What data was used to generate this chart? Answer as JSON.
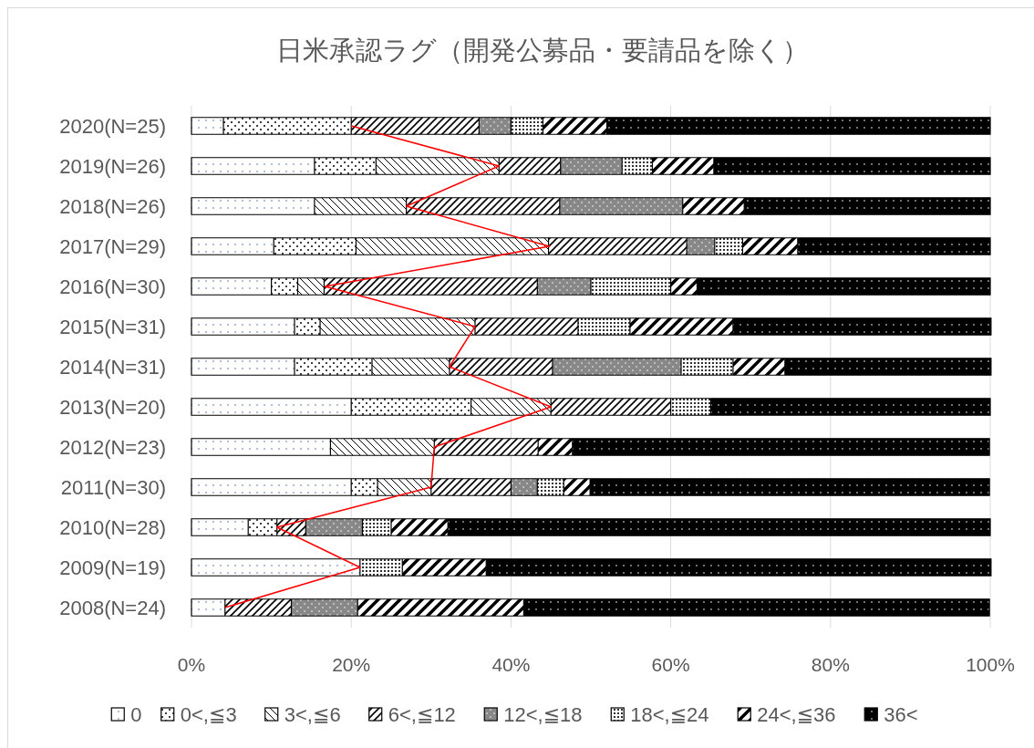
{
  "chart_data": {
    "type": "bar",
    "orientation": "horizontal",
    "stacked": true,
    "title": "日米承認ラグ（開発公募品・要請品を除く）",
    "categories": [
      "2020(N=25)",
      "2019(N=26)",
      "2018(N=26)",
      "2017(N=29)",
      "2016(N=30)",
      "2015(N=31)",
      "2014(N=31)",
      "2013(N=20)",
      "2012(N=23)",
      "2011(N=30)",
      "2010(N=28)",
      "2009(N=19)",
      "2008(N=24)"
    ],
    "series": [
      {
        "name": "0",
        "color": "#ffffff",
        "values": [
          4,
          15.4,
          15.4,
          10.3,
          10,
          12.9,
          12.9,
          20,
          17.4,
          20,
          7.1,
          21.1,
          4.2
        ]
      },
      {
        "name": "0<,≦3",
        "color": "#ffffff",
        "values": [
          16,
          7.7,
          0,
          10.3,
          3.3,
          3.2,
          9.7,
          15,
          0,
          3.3,
          3.6,
          0,
          0
        ]
      },
      {
        "name": "3<,≦6",
        "color": "#ffffff",
        "values": [
          0,
          15.4,
          11.5,
          24.1,
          3.3,
          19.4,
          9.7,
          10,
          13,
          6.7,
          0,
          0,
          0
        ]
      },
      {
        "name": "6<,≦12",
        "color": "#ffffff",
        "values": [
          16,
          7.7,
          19.2,
          17.3,
          26.7,
          12.9,
          12.9,
          15,
          13,
          10,
          3.6,
          0,
          8.3
        ]
      },
      {
        "name": "12<,≦18",
        "color": "#ffffff",
        "values": [
          4,
          7.7,
          15.4,
          3.5,
          6.7,
          0,
          16.1,
          0,
          0,
          3.3,
          7.1,
          0,
          8.3
        ]
      },
      {
        "name": "18<,≦24",
        "color": "#ffffff",
        "values": [
          4,
          3.8,
          0,
          3.5,
          10,
          6.5,
          6.5,
          5,
          0,
          3.3,
          3.6,
          5.3,
          0
        ]
      },
      {
        "name": "24<,≦36",
        "color": "#ffffff",
        "values": [
          8,
          7.7,
          7.7,
          6.9,
          3.3,
          12.9,
          6.5,
          0,
          4.3,
          3.3,
          7.1,
          10.5,
          20.8
        ]
      },
      {
        "name": "36<",
        "color": "#000000",
        "values": [
          48,
          34.6,
          30.8,
          24.1,
          36.7,
          32.3,
          25.8,
          35,
          52.2,
          50,
          67.9,
          63.2,
          58.3
        ]
      },
      {
        "type": "line",
        "color": "#ff0000",
        "values": [
          20,
          38.5,
          26.9,
          44.8,
          16.7,
          35.5,
          32.3,
          45,
          30.4,
          30,
          10.7,
          21.1,
          4.2
        ]
      }
    ],
    "xlim": [
      0,
      100
    ],
    "xticks": [
      {
        "value": 0,
        "label": "0%"
      },
      {
        "value": 20,
        "label": "20%"
      },
      {
        "value": 40,
        "label": "40%"
      },
      {
        "value": 60,
        "label": "60%"
      },
      {
        "value": 80,
        "label": "80%"
      },
      {
        "value": 100,
        "label": "100%"
      }
    ],
    "grid": "x",
    "legend": "bottom"
  }
}
